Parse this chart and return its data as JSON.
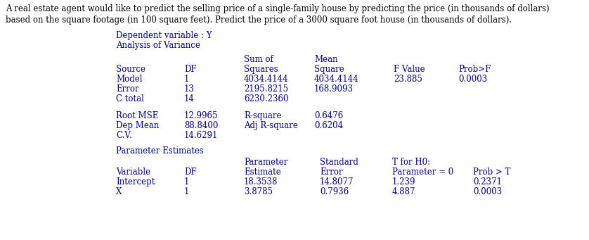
{
  "intro_line1": "A real estate agent would like to predict the selling price of a single-family house by predicting the price (in thousands of dollars)",
  "intro_line2": "based on the square footage (in 100 square feet). Predict the price of a 3000 square foot house (in thousands of dollars).",
  "dep_var_label": "Dependent variable : Y",
  "anova_label": "Analysis of Variance",
  "param_est_label": "Parameter Estimates",
  "bg_color": "#ffffff",
  "intro_color": "#000000",
  "table_color": "#00008B",
  "intro_fontsize": 8.5,
  "table_fontsize": 8.5,
  "font_family": "DejaVu Serif"
}
